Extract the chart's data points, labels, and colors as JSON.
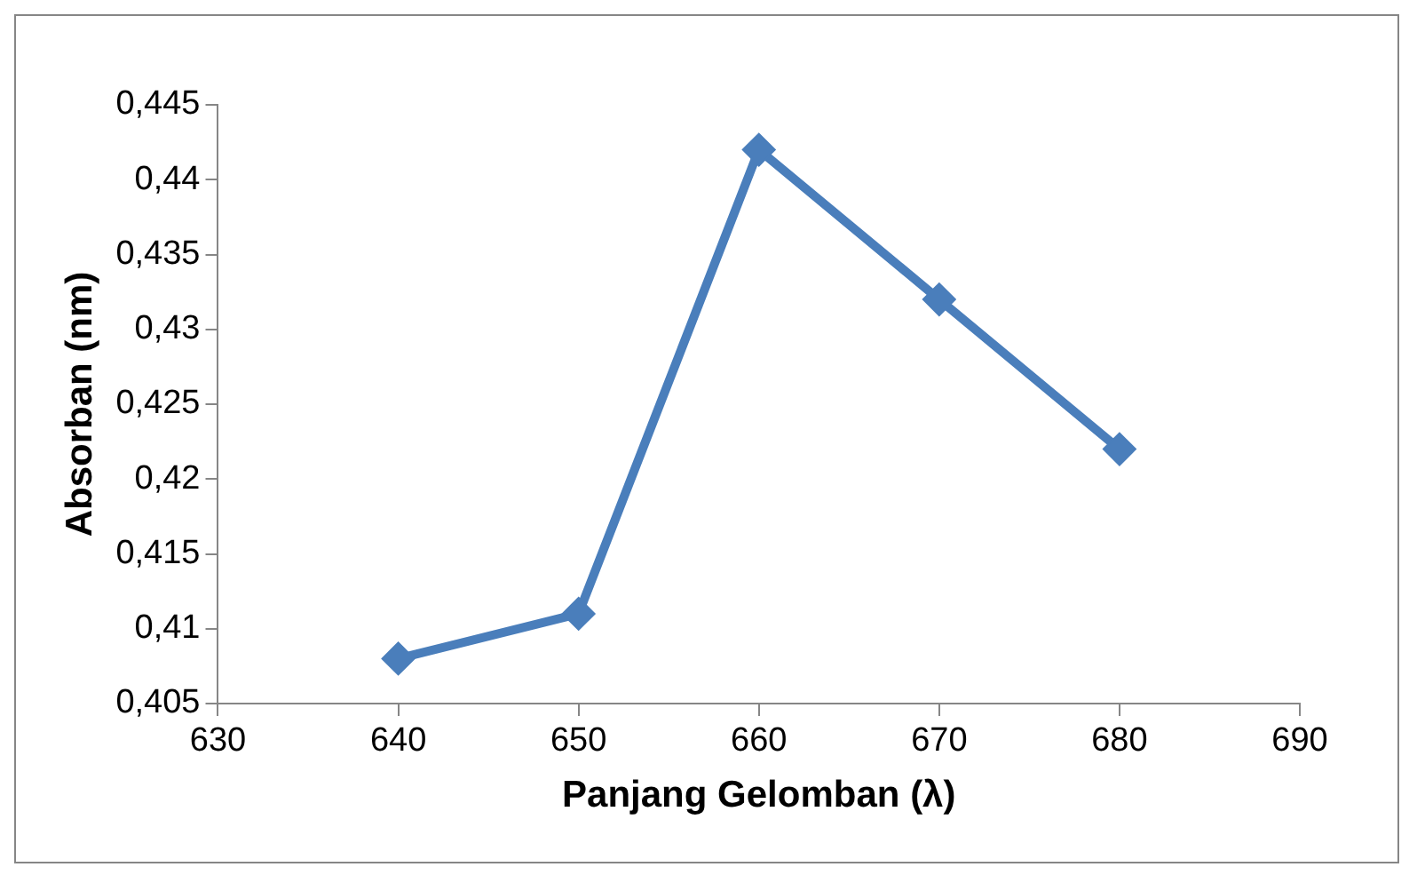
{
  "chart_data": {
    "type": "line",
    "xlabel": "Panjang Gelomban (λ)",
    "ylabel": "Absorban (nm)",
    "x": [
      640,
      650,
      660,
      670,
      680
    ],
    "series": [
      {
        "color": "#4a7ebb",
        "values": [
          0.408,
          0.411,
          0.442,
          0.432,
          0.422
        ]
      }
    ],
    "xlim": [
      630,
      690
    ],
    "xticks": [
      630,
      640,
      650,
      660,
      670,
      680,
      690
    ],
    "ylim": [
      0.405,
      0.445
    ],
    "yticks": [
      {
        "value": 0.405,
        "label": "0,405"
      },
      {
        "value": 0.41,
        "label": "0,41"
      },
      {
        "value": 0.415,
        "label": "0,415"
      },
      {
        "value": 0.42,
        "label": "0,42"
      },
      {
        "value": 0.425,
        "label": "0,425"
      },
      {
        "value": 0.43,
        "label": "0,43"
      },
      {
        "value": 0.435,
        "label": "0,435"
      },
      {
        "value": 0.44,
        "label": "0,44"
      },
      {
        "value": 0.445,
        "label": "0,445"
      }
    ],
    "grid": false,
    "legend": false,
    "marker": "diamond",
    "line_style": "solid"
  }
}
